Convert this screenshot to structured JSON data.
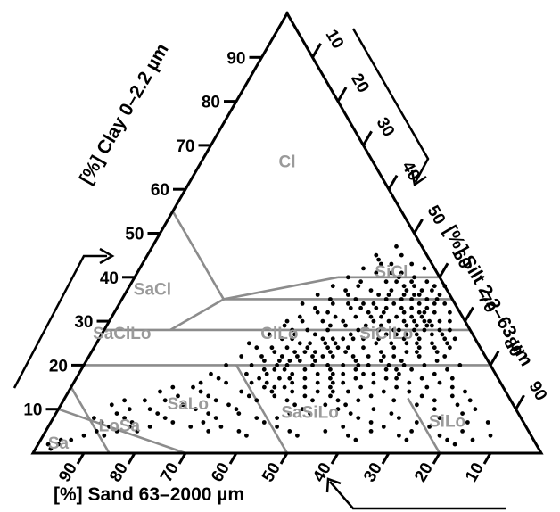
{
  "chart_data": {
    "type": "ternary-scatter",
    "title": "",
    "axes": {
      "clay": {
        "label": "[%] Clay 0–2.2 µm",
        "ticks": [
          10,
          20,
          30,
          40,
          50,
          60,
          70,
          80,
          90
        ],
        "tick_labels": [
          "10",
          "20",
          "30",
          "40",
          "50",
          "60",
          "70",
          "80",
          "90"
        ]
      },
      "silt": {
        "label": "[%] Silt 2.2–63 µm",
        "ticks": [
          10,
          20,
          30,
          40,
          50,
          60,
          70,
          80,
          90
        ],
        "tick_labels": [
          "10",
          "20",
          "30",
          "40",
          "50",
          "60",
          "70",
          "80",
          "90"
        ]
      },
      "sand": {
        "label": "[%] Sand 63–2000 µm",
        "ticks": [
          10,
          20,
          30,
          40,
          50,
          60,
          70,
          80,
          90
        ],
        "tick_labels": [
          "10",
          "20",
          "30",
          "40",
          "50",
          "60",
          "70",
          "80",
          "90"
        ]
      }
    },
    "regions": [
      {
        "name": "Cl",
        "clay": 66,
        "silt": 17
      },
      {
        "name": "SiCl",
        "clay": 41,
        "silt": 50
      },
      {
        "name": "SaCl",
        "clay": 37,
        "silt": 5
      },
      {
        "name": "SaClLo",
        "clay": 27,
        "silt": 4
      },
      {
        "name": "ClLo",
        "clay": 27,
        "silt": 35
      },
      {
        "name": "SiClLo",
        "clay": 27,
        "silt": 56
      },
      {
        "name": "SaLo",
        "clay": 11,
        "silt": 25
      },
      {
        "name": "LoSa",
        "clay": 6,
        "silt": 14
      },
      {
        "name": "Sa",
        "clay": 2,
        "silt": 4
      },
      {
        "name": "SaSiLo",
        "clay": 9,
        "silt": 50
      },
      {
        "name": "SiLo",
        "clay": 7,
        "silt": 78
      }
    ],
    "boundaries": [
      [
        [
          55,
          0
        ],
        [
          35,
          20
        ]
      ],
      [
        [
          35,
          20
        ],
        [
          40,
          40
        ]
      ],
      [
        [
          40,
          40
        ],
        [
          40,
          60
        ]
      ],
      [
        [
          40,
          60
        ],
        [
          55,
          45
        ]
      ],
      [
        [
          35,
          20
        ],
        [
          35,
          65
        ]
      ],
      [
        [
          35,
          20
        ],
        [
          28,
          13
        ]
      ],
      [
        [
          28,
          0
        ],
        [
          28,
          72
        ]
      ],
      [
        [
          20,
          0
        ],
        [
          20,
          80
        ]
      ],
      [
        [
          20,
          30
        ],
        [
          0,
          50
        ]
      ],
      [
        [
          15,
          0
        ],
        [
          0,
          15
        ]
      ],
      [
        [
          10,
          0
        ],
        [
          0,
          30
        ]
      ],
      [
        [
          12.5,
          67.5
        ],
        [
          0,
          80
        ]
      ]
    ],
    "points": [
      [
        30,
        55
      ],
      [
        31,
        51
      ],
      [
        32,
        53
      ],
      [
        34,
        50
      ],
      [
        35,
        57
      ],
      [
        32,
        60
      ],
      [
        30,
        62
      ],
      [
        28,
        58
      ],
      [
        29,
        54
      ],
      [
        27,
        56
      ],
      [
        26,
        52
      ],
      [
        25,
        58
      ],
      [
        27,
        60
      ],
      [
        30,
        58
      ],
      [
        33,
        56
      ],
      [
        31,
        48
      ],
      [
        29,
        47
      ],
      [
        28,
        50
      ],
      [
        26,
        48
      ],
      [
        25,
        45
      ],
      [
        24,
        50
      ],
      [
        23,
        47
      ],
      [
        22,
        44
      ],
      [
        24,
        42
      ],
      [
        26,
        44
      ],
      [
        27,
        42
      ],
      [
        25,
        40
      ],
      [
        23,
        40
      ],
      [
        21,
        42
      ],
      [
        22,
        38
      ],
      [
        20,
        40
      ],
      [
        19,
        36
      ],
      [
        21,
        35
      ],
      [
        23,
        36
      ],
      [
        24,
        38
      ],
      [
        26,
        38
      ],
      [
        28,
        40
      ],
      [
        29,
        44
      ],
      [
        30,
        46
      ],
      [
        31,
        44
      ],
      [
        32,
        42
      ],
      [
        33,
        46
      ],
      [
        34,
        48
      ],
      [
        35,
        52
      ],
      [
        36,
        55
      ],
      [
        37,
        58
      ],
      [
        38,
        56
      ],
      [
        36,
        50
      ],
      [
        37,
        52
      ],
      [
        33,
        53
      ],
      [
        32,
        57
      ],
      [
        31,
        59
      ],
      [
        29,
        61
      ],
      [
        28,
        63
      ],
      [
        27,
        65
      ],
      [
        26,
        63
      ],
      [
        25,
        61
      ],
      [
        24,
        59
      ],
      [
        23,
        57
      ],
      [
        22,
        55
      ],
      [
        21,
        53
      ],
      [
        20,
        51
      ],
      [
        19,
        49
      ],
      [
        18,
        47
      ],
      [
        17,
        45
      ],
      [
        16,
        43
      ],
      [
        18,
        42
      ],
      [
        20,
        45
      ],
      [
        22,
        48
      ],
      [
        24,
        53
      ],
      [
        26,
        55
      ],
      [
        28,
        57
      ],
      [
        30,
        60
      ],
      [
        29,
        64
      ],
      [
        27,
        67
      ],
      [
        25,
        66
      ],
      [
        24,
        64
      ],
      [
        23,
        62
      ],
      [
        22,
        60
      ],
      [
        21,
        58
      ],
      [
        20,
        56
      ],
      [
        19,
        54
      ],
      [
        18,
        52
      ],
      [
        17,
        50
      ],
      [
        16,
        48
      ],
      [
        15,
        46
      ],
      [
        14,
        44
      ],
      [
        15,
        42
      ],
      [
        17,
        40
      ],
      [
        19,
        40
      ],
      [
        21,
        45
      ],
      [
        23,
        50
      ],
      [
        25,
        55
      ],
      [
        27,
        58
      ],
      [
        29,
        59
      ],
      [
        31,
        56
      ],
      [
        33,
        58
      ],
      [
        35,
        60
      ],
      [
        34,
        62
      ],
      [
        32,
        63
      ],
      [
        30,
        65
      ],
      [
        28,
        66
      ],
      [
        26,
        68
      ],
      [
        24,
        67
      ],
      [
        22,
        65
      ],
      [
        20,
        63
      ],
      [
        19,
        60
      ],
      [
        18,
        58
      ],
      [
        17,
        55
      ],
      [
        16,
        53
      ],
      [
        15,
        51
      ],
      [
        14,
        49
      ],
      [
        13,
        47
      ],
      [
        14,
        40
      ],
      [
        16,
        38
      ],
      [
        18,
        37
      ],
      [
        20,
        38
      ],
      [
        22,
        41
      ],
      [
        25,
        47
      ],
      [
        27,
        49
      ],
      [
        29,
        51
      ],
      [
        31,
        53
      ],
      [
        33,
        51
      ],
      [
        35,
        55
      ],
      [
        36,
        58
      ],
      [
        34,
        45
      ],
      [
        32,
        40
      ],
      [
        30,
        38
      ],
      [
        28,
        37
      ],
      [
        26,
        36
      ],
      [
        24,
        35
      ],
      [
        22,
        34
      ],
      [
        20,
        33
      ],
      [
        18,
        33
      ],
      [
        16,
        35
      ],
      [
        15,
        38
      ],
      [
        13,
        41
      ],
      [
        12,
        44
      ],
      [
        11,
        46
      ],
      [
        12,
        49
      ],
      [
        13,
        52
      ],
      [
        14,
        55
      ],
      [
        15,
        57
      ],
      [
        16,
        59
      ],
      [
        17,
        61
      ],
      [
        18,
        63
      ],
      [
        19,
        65
      ],
      [
        20,
        67
      ],
      [
        21,
        69
      ],
      [
        22,
        70
      ],
      [
        23,
        68
      ],
      [
        24,
        70
      ],
      [
        25,
        69
      ],
      [
        26,
        70
      ],
      [
        28,
        68
      ],
      [
        30,
        67
      ],
      [
        32,
        66
      ],
      [
        34,
        64
      ],
      [
        36,
        62
      ],
      [
        37,
        60
      ],
      [
        38,
        62
      ],
      [
        39,
        58
      ],
      [
        40,
        55
      ],
      [
        41,
        52
      ],
      [
        39,
        50
      ],
      [
        42,
        56
      ],
      [
        43,
        53
      ],
      [
        45,
        50
      ],
      [
        47,
        48
      ],
      [
        44,
        46
      ],
      [
        38,
        45
      ],
      [
        36,
        44
      ],
      [
        34,
        42
      ],
      [
        30,
        42
      ],
      [
        28,
        44
      ],
      [
        26,
        46
      ],
      [
        24,
        46
      ],
      [
        22,
        46
      ],
      [
        20,
        48
      ],
      [
        18,
        50
      ],
      [
        16,
        51
      ],
      [
        14,
        52
      ],
      [
        12,
        54
      ],
      [
        11,
        56
      ],
      [
        12,
        58
      ],
      [
        13,
        60
      ],
      [
        14,
        62
      ],
      [
        15,
        64
      ],
      [
        16,
        66
      ],
      [
        17,
        68
      ],
      [
        10,
        48
      ],
      [
        9,
        50
      ],
      [
        11,
        52
      ],
      [
        10,
        55
      ],
      [
        9,
        58
      ],
      [
        8,
        60
      ],
      [
        10,
        62
      ],
      [
        12,
        65
      ],
      [
        14,
        67
      ],
      [
        13,
        70
      ],
      [
        9,
        66
      ],
      [
        8,
        68
      ],
      [
        11,
        70
      ],
      [
        12,
        73
      ],
      [
        10,
        74
      ],
      [
        8,
        76
      ],
      [
        13,
        76
      ],
      [
        11,
        78
      ],
      [
        9,
        80
      ],
      [
        7,
        82
      ],
      [
        15,
        70
      ],
      [
        16,
        72
      ],
      [
        18,
        70
      ],
      [
        19,
        72
      ],
      [
        20,
        74
      ],
      [
        17,
        74
      ],
      [
        15,
        75
      ],
      [
        14,
        78
      ],
      [
        12,
        80
      ],
      [
        10,
        82
      ],
      [
        10,
        35
      ],
      [
        11,
        33
      ],
      [
        12,
        30
      ],
      [
        13,
        28
      ],
      [
        14,
        26
      ],
      [
        15,
        24
      ],
      [
        13,
        22
      ],
      [
        12,
        20
      ],
      [
        11,
        24
      ],
      [
        10,
        27
      ],
      [
        9,
        30
      ],
      [
        8,
        32
      ],
      [
        9,
        36
      ],
      [
        8,
        40
      ],
      [
        7,
        42
      ],
      [
        8,
        44
      ],
      [
        9,
        46
      ],
      [
        12,
        38
      ],
      [
        13,
        36
      ],
      [
        14,
        34
      ],
      [
        16,
        30
      ],
      [
        17,
        28
      ],
      [
        18,
        26
      ],
      [
        16,
        25
      ],
      [
        15,
        20
      ],
      [
        14,
        18
      ],
      [
        12,
        16
      ],
      [
        10,
        18
      ],
      [
        9,
        20
      ],
      [
        8,
        22
      ],
      [
        7,
        24
      ],
      [
        6,
        20
      ],
      [
        5,
        18
      ],
      [
        7,
        16
      ],
      [
        8,
        14
      ],
      [
        6,
        12
      ],
      [
        5,
        10
      ],
      [
        4,
        8
      ],
      [
        3,
        6
      ],
      [
        2,
        4
      ],
      [
        1,
        3
      ],
      [
        2,
        2
      ],
      [
        3,
        4
      ],
      [
        4,
        12
      ],
      [
        5,
        14
      ],
      [
        6,
        16
      ],
      [
        7,
        10
      ],
      [
        8,
        8
      ],
      [
        9,
        12
      ],
      [
        10,
        14
      ],
      [
        11,
        10
      ],
      [
        12,
        12
      ],
      [
        6,
        28
      ],
      [
        7,
        30
      ],
      [
        5,
        32
      ],
      [
        6,
        34
      ],
      [
        5,
        38
      ],
      [
        4,
        40
      ],
      [
        6,
        45
      ],
      [
        5,
        48
      ],
      [
        4,
        50
      ],
      [
        5,
        55
      ],
      [
        6,
        58
      ],
      [
        4,
        60
      ],
      [
        3,
        62
      ],
      [
        5,
        64
      ],
      [
        7,
        63
      ],
      [
        6,
        66
      ],
      [
        4,
        70
      ],
      [
        3,
        72
      ],
      [
        5,
        72
      ],
      [
        7,
        72
      ],
      [
        6,
        75
      ],
      [
        4,
        78
      ],
      [
        3,
        80
      ],
      [
        2,
        82
      ],
      [
        5,
        82
      ],
      [
        7,
        86
      ],
      [
        4,
        88
      ],
      [
        3,
        85
      ],
      [
        20,
        28
      ],
      [
        22,
        30
      ],
      [
        24,
        32
      ],
      [
        25,
        30
      ],
      [
        27,
        33
      ],
      [
        29,
        35
      ],
      [
        31,
        37
      ],
      [
        33,
        39
      ],
      [
        35,
        41
      ],
      [
        37,
        43
      ],
      [
        39,
        45
      ],
      [
        41,
        47
      ],
      [
        43,
        49
      ],
      [
        40,
        52
      ],
      [
        38,
        54
      ],
      [
        36,
        52
      ],
      [
        34,
        54
      ],
      [
        32,
        50
      ],
      [
        30,
        52
      ],
      [
        28,
        54
      ],
      [
        26,
        50
      ],
      [
        24,
        48
      ],
      [
        22,
        52
      ],
      [
        20,
        54
      ],
      [
        18,
        56
      ],
      [
        23,
        44
      ],
      [
        21,
        40
      ],
      [
        19,
        44
      ],
      [
        17,
        42
      ],
      [
        15,
        40
      ],
      [
        33,
        48
      ],
      [
        35,
        46
      ],
      [
        37,
        48
      ],
      [
        39,
        52
      ],
      [
        41,
        50
      ],
      [
        43,
        47
      ],
      [
        45,
        45
      ],
      [
        42,
        44
      ],
      [
        40,
        42
      ],
      [
        38,
        40
      ],
      [
        36,
        38
      ],
      [
        34,
        36
      ],
      [
        30,
        35
      ],
      [
        27,
        38
      ],
      [
        25,
        42
      ],
      [
        23,
        42
      ],
      [
        21,
        38
      ],
      [
        19,
        38
      ],
      [
        17,
        36
      ],
      [
        26,
        60
      ],
      [
        28,
        61
      ],
      [
        30,
        63
      ],
      [
        32,
        61
      ],
      [
        34,
        59
      ],
      [
        36,
        57
      ],
      [
        38,
        60
      ],
      [
        39,
        55
      ],
      [
        37,
        55
      ],
      [
        35,
        62
      ],
      [
        33,
        61
      ],
      [
        31,
        61
      ],
      [
        29,
        63
      ],
      [
        27,
        62
      ],
      [
        25,
        63
      ],
      [
        23,
        64
      ],
      [
        21,
        62
      ],
      [
        19,
        62
      ],
      [
        17,
        63
      ],
      [
        20,
        60
      ],
      [
        22,
        58
      ]
    ]
  }
}
